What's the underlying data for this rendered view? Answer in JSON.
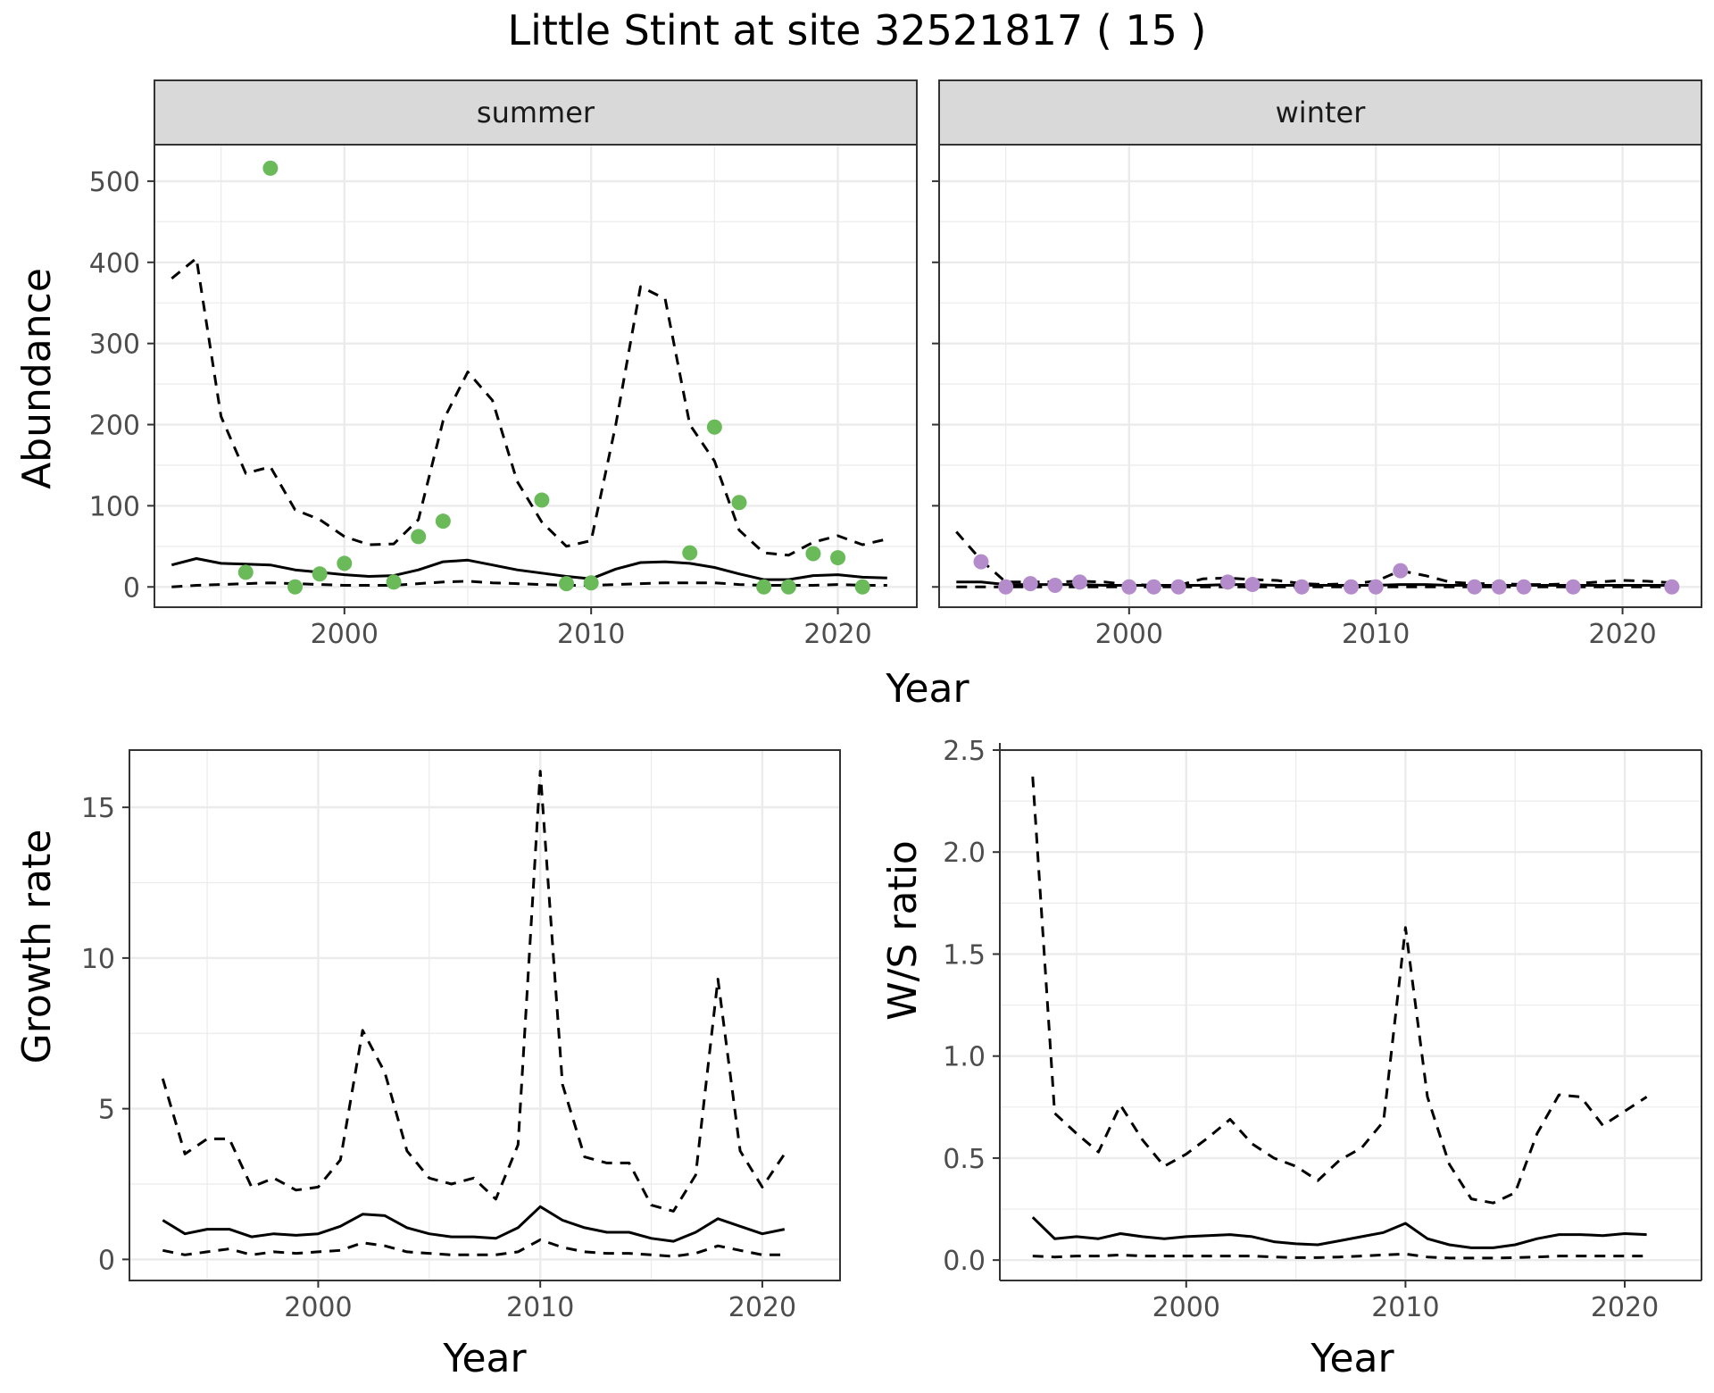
{
  "title": "Little Stint at site 32521817 ( 15 )",
  "colors": {
    "summer_points": "#6aba5a",
    "winter_points": "#b48ccb",
    "lines": "#000000",
    "grid_major": "#ebebeb",
    "strip_fill": "#d9d9d9"
  },
  "chart_data": [
    {
      "type": "scatter",
      "facet": "summer",
      "xlabel": "Year",
      "ylabel": "Abundance",
      "xlim": [
        1992.3,
        2023.2
      ],
      "ylim": [
        -25,
        545
      ],
      "xticks": [
        2000,
        2010,
        2020
      ],
      "yticks": [
        0,
        100,
        200,
        300,
        400,
        500
      ],
      "points": {
        "x": [
          1996,
          1997,
          1998,
          1999,
          2000,
          2002,
          2003,
          2004,
          2008,
          2009,
          2010,
          2014,
          2015,
          2016,
          2017,
          2018,
          2019,
          2020,
          2021
        ],
        "y": [
          18,
          516,
          0,
          16,
          29,
          6,
          62,
          81,
          107,
          4,
          5,
          42,
          197,
          104,
          0,
          0,
          41,
          36,
          0
        ]
      },
      "lines": [
        {
          "role": "mean",
          "style": "solid",
          "x": [
            1993,
            1994,
            1995,
            1996,
            1997,
            1998,
            1999,
            2000,
            2001,
            2002,
            2003,
            2004,
            2005,
            2006,
            2007,
            2008,
            2009,
            2010,
            2011,
            2012,
            2013,
            2014,
            2015,
            2016,
            2017,
            2018,
            2019,
            2020,
            2021,
            2022
          ],
          "y": [
            27,
            35,
            29,
            28,
            27,
            21,
            18,
            15,
            13,
            14,
            21,
            31,
            33,
            27,
            21,
            17,
            13,
            10,
            22,
            30,
            31,
            29,
            24,
            16,
            9,
            9,
            14,
            15,
            12,
            11
          ]
        },
        {
          "role": "upper",
          "style": "dashed",
          "x": [
            1993,
            1994,
            1995,
            1996,
            1997,
            1998,
            1999,
            2000,
            2001,
            2002,
            2003,
            2004,
            2005,
            2006,
            2007,
            2008,
            2009,
            2010,
            2011,
            2012,
            2013,
            2014,
            2015,
            2016,
            2017,
            2018,
            2019,
            2020,
            2021,
            2022
          ],
          "y": [
            380,
            405,
            210,
            140,
            148,
            95,
            83,
            62,
            52,
            53,
            83,
            205,
            265,
            230,
            130,
            80,
            50,
            57,
            200,
            370,
            355,
            200,
            155,
            70,
            42,
            39,
            55,
            63,
            52,
            59
          ]
        },
        {
          "role": "lower",
          "style": "dashed",
          "x": [
            1993,
            1994,
            1995,
            1996,
            1997,
            1998,
            1999,
            2000,
            2001,
            2002,
            2003,
            2004,
            2005,
            2006,
            2007,
            2008,
            2009,
            2010,
            2011,
            2012,
            2013,
            2014,
            2015,
            2016,
            2017,
            2018,
            2019,
            2020,
            2021,
            2022
          ],
          "y": [
            0,
            2,
            3,
            4,
            5,
            4,
            3,
            2,
            2,
            2,
            4,
            6,
            7,
            5,
            4,
            3,
            2,
            2,
            3,
            4,
            5,
            5,
            5,
            3,
            2,
            2,
            2,
            3,
            2,
            2
          ]
        }
      ]
    },
    {
      "type": "scatter",
      "facet": "winter",
      "xlabel": "Year",
      "ylabel": "Abundance",
      "xlim": [
        1992.3,
        2023.2
      ],
      "ylim": [
        -25,
        545
      ],
      "xticks": [
        2000,
        2010,
        2020
      ],
      "yticks": [
        0,
        100,
        200,
        300,
        400,
        500
      ],
      "points": {
        "x": [
          1994,
          1995,
          1996,
          1997,
          1998,
          2000,
          2001,
          2002,
          2004,
          2005,
          2007,
          2009,
          2010,
          2011,
          2014,
          2015,
          2016,
          2018,
          2022
        ],
        "y": [
          31,
          0,
          4,
          2,
          6,
          0,
          0,
          0,
          6,
          3,
          0,
          0,
          0,
          20,
          0,
          0,
          0,
          0,
          0
        ]
      },
      "lines": [
        {
          "role": "mean",
          "style": "solid",
          "x": [
            1993,
            1994,
            1995,
            1996,
            1997,
            1998,
            1999,
            2000,
            2001,
            2002,
            2003,
            2004,
            2005,
            2006,
            2007,
            2008,
            2009,
            2010,
            2011,
            2012,
            2013,
            2014,
            2015,
            2016,
            2017,
            2018,
            2019,
            2020,
            2021,
            2022
          ],
          "y": [
            6,
            6,
            3,
            3,
            3,
            3,
            2,
            2,
            2,
            2,
            2,
            3,
            3,
            2,
            2,
            2,
            2,
            2,
            3,
            3,
            2,
            2,
            2,
            2,
            2,
            2,
            2,
            2,
            2,
            2
          ]
        },
        {
          "role": "upper",
          "style": "dashed",
          "x": [
            1993,
            1994,
            1995,
            1996,
            1997,
            1998,
            1999,
            2000,
            2001,
            2002,
            2003,
            2004,
            2005,
            2006,
            2007,
            2008,
            2009,
            2010,
            2011,
            2012,
            2013,
            2014,
            2015,
            2016,
            2017,
            2018,
            2019,
            2020,
            2021,
            2022
          ],
          "y": [
            68,
            33,
            6,
            6,
            6,
            7,
            6,
            3,
            2,
            2,
            10,
            11,
            9,
            8,
            4,
            3,
            4,
            7,
            20,
            14,
            6,
            4,
            4,
            3,
            3,
            4,
            6,
            8,
            7,
            5
          ]
        },
        {
          "role": "lower",
          "style": "dashed",
          "x": [
            1993,
            1994,
            1995,
            1996,
            1997,
            1998,
            1999,
            2000,
            2001,
            2002,
            2003,
            2004,
            2005,
            2006,
            2007,
            2008,
            2009,
            2010,
            2011,
            2012,
            2013,
            2014,
            2015,
            2016,
            2017,
            2018,
            2019,
            2020,
            2021,
            2022
          ],
          "y": [
            0,
            0,
            0,
            0,
            0,
            0,
            0,
            0,
            0,
            0,
            0,
            0,
            0,
            0,
            0,
            0,
            0,
            0,
            0,
            0,
            0,
            0,
            0,
            0,
            0,
            0,
            0,
            0,
            0,
            0
          ]
        }
      ]
    },
    {
      "type": "line",
      "xlabel": "Year",
      "ylabel": "Growth rate",
      "xlim": [
        1991.5,
        2023.5
      ],
      "ylim": [
        -0.7,
        16.9
      ],
      "xticks": [
        2000,
        2010,
        2020
      ],
      "yticks": [
        0,
        5,
        10,
        15
      ],
      "lines": [
        {
          "role": "mean",
          "style": "solid",
          "x": [
            1993,
            1994,
            1995,
            1996,
            1997,
            1998,
            1999,
            2000,
            2001,
            2002,
            2003,
            2004,
            2005,
            2006,
            2007,
            2008,
            2009,
            2010,
            2011,
            2012,
            2013,
            2014,
            2015,
            2016,
            2017,
            2018,
            2019,
            2020,
            2021
          ],
          "y": [
            1.3,
            0.85,
            1.0,
            1.0,
            0.75,
            0.85,
            0.8,
            0.85,
            1.1,
            1.5,
            1.45,
            1.05,
            0.85,
            0.75,
            0.75,
            0.7,
            1.05,
            1.75,
            1.3,
            1.05,
            0.9,
            0.9,
            0.7,
            0.6,
            0.9,
            1.35,
            1.1,
            0.85,
            1.0
          ]
        },
        {
          "role": "upper",
          "style": "dashed",
          "x": [
            1993,
            1994,
            1995,
            1996,
            1997,
            1998,
            1999,
            2000,
            2001,
            2002,
            2003,
            2004,
            2005,
            2006,
            2007,
            2008,
            2009,
            2010,
            2011,
            2012,
            2013,
            2014,
            2015,
            2016,
            2017,
            2018,
            2019,
            2020,
            2021
          ],
          "y": [
            6.0,
            3.5,
            4.0,
            4.0,
            2.4,
            2.7,
            2.3,
            2.4,
            3.3,
            7.6,
            6.2,
            3.6,
            2.7,
            2.5,
            2.7,
            2.0,
            3.8,
            16.2,
            5.8,
            3.4,
            3.2,
            3.2,
            1.8,
            1.6,
            2.8,
            9.3,
            3.6,
            2.4,
            3.5
          ]
        },
        {
          "role": "lower",
          "style": "dashed",
          "x": [
            1993,
            1994,
            1995,
            1996,
            1997,
            1998,
            1999,
            2000,
            2001,
            2002,
            2003,
            2004,
            2005,
            2006,
            2007,
            2008,
            2009,
            2010,
            2011,
            2012,
            2013,
            2014,
            2015,
            2016,
            2017,
            2018,
            2019,
            2020,
            2021
          ],
          "y": [
            0.3,
            0.15,
            0.25,
            0.35,
            0.15,
            0.25,
            0.2,
            0.25,
            0.3,
            0.55,
            0.45,
            0.25,
            0.2,
            0.15,
            0.15,
            0.15,
            0.25,
            0.65,
            0.4,
            0.25,
            0.2,
            0.2,
            0.15,
            0.1,
            0.2,
            0.45,
            0.3,
            0.15,
            0.15
          ]
        }
      ]
    },
    {
      "type": "line",
      "xlabel": "Year",
      "ylabel": "W/S ratio",
      "xlim": [
        1991.5,
        2023.5
      ],
      "ylim": [
        -0.1,
        2.5
      ],
      "xticks": [
        2000,
        2010,
        2020
      ],
      "yticks": [
        0.0,
        0.5,
        1.0,
        1.5,
        2.0,
        2.5
      ],
      "ytick_labels": [
        "0.0",
        "0.5",
        "1.0",
        "1.5",
        "2.0",
        "2.5"
      ],
      "lines": [
        {
          "role": "mean",
          "style": "solid",
          "x": [
            1993,
            1994,
            1995,
            1996,
            1997,
            1998,
            1999,
            2000,
            2001,
            2002,
            2003,
            2004,
            2005,
            2006,
            2007,
            2008,
            2009,
            2010,
            2011,
            2012,
            2013,
            2014,
            2015,
            2016,
            2017,
            2018,
            2019,
            2020,
            2021
          ],
          "y": [
            0.21,
            0.105,
            0.115,
            0.105,
            0.13,
            0.115,
            0.105,
            0.115,
            0.12,
            0.125,
            0.115,
            0.09,
            0.08,
            0.075,
            0.095,
            0.115,
            0.135,
            0.18,
            0.105,
            0.075,
            0.06,
            0.06,
            0.075,
            0.105,
            0.125,
            0.125,
            0.12,
            0.13,
            0.125
          ]
        },
        {
          "role": "upper",
          "style": "dashed",
          "x": [
            1993,
            1994,
            1995,
            1996,
            1997,
            1998,
            1999,
            2000,
            2001,
            2002,
            2003,
            2004,
            2005,
            2006,
            2007,
            2008,
            2009,
            2010,
            2011,
            2012,
            2013,
            2014,
            2015,
            2016,
            2017,
            2018,
            2019,
            2020,
            2021
          ],
          "y": [
            2.37,
            0.72,
            0.62,
            0.53,
            0.76,
            0.59,
            0.46,
            0.52,
            0.6,
            0.69,
            0.57,
            0.5,
            0.46,
            0.39,
            0.49,
            0.55,
            0.68,
            1.63,
            0.8,
            0.47,
            0.3,
            0.28,
            0.33,
            0.62,
            0.81,
            0.8,
            0.66,
            0.73,
            0.8
          ]
        },
        {
          "role": "lower",
          "style": "dashed",
          "x": [
            1993,
            1994,
            1995,
            1996,
            1997,
            1998,
            1999,
            2000,
            2001,
            2002,
            2003,
            2004,
            2005,
            2006,
            2007,
            2008,
            2009,
            2010,
            2011,
            2012,
            2013,
            2014,
            2015,
            2016,
            2017,
            2018,
            2019,
            2020,
            2021
          ],
          "y": [
            0.02,
            0.015,
            0.02,
            0.02,
            0.025,
            0.02,
            0.02,
            0.02,
            0.02,
            0.02,
            0.02,
            0.015,
            0.012,
            0.012,
            0.015,
            0.02,
            0.025,
            0.03,
            0.015,
            0.01,
            0.01,
            0.01,
            0.012,
            0.015,
            0.02,
            0.02,
            0.02,
            0.02,
            0.02
          ]
        }
      ]
    }
  ],
  "strips": [
    "summer",
    "winter"
  ],
  "axis_titles": {
    "top_x": "Year",
    "top_y": "Abundance",
    "growth_x": "Year",
    "growth_y": "Growth rate",
    "ratio_x": "Year",
    "ratio_y": "W/S ratio"
  }
}
